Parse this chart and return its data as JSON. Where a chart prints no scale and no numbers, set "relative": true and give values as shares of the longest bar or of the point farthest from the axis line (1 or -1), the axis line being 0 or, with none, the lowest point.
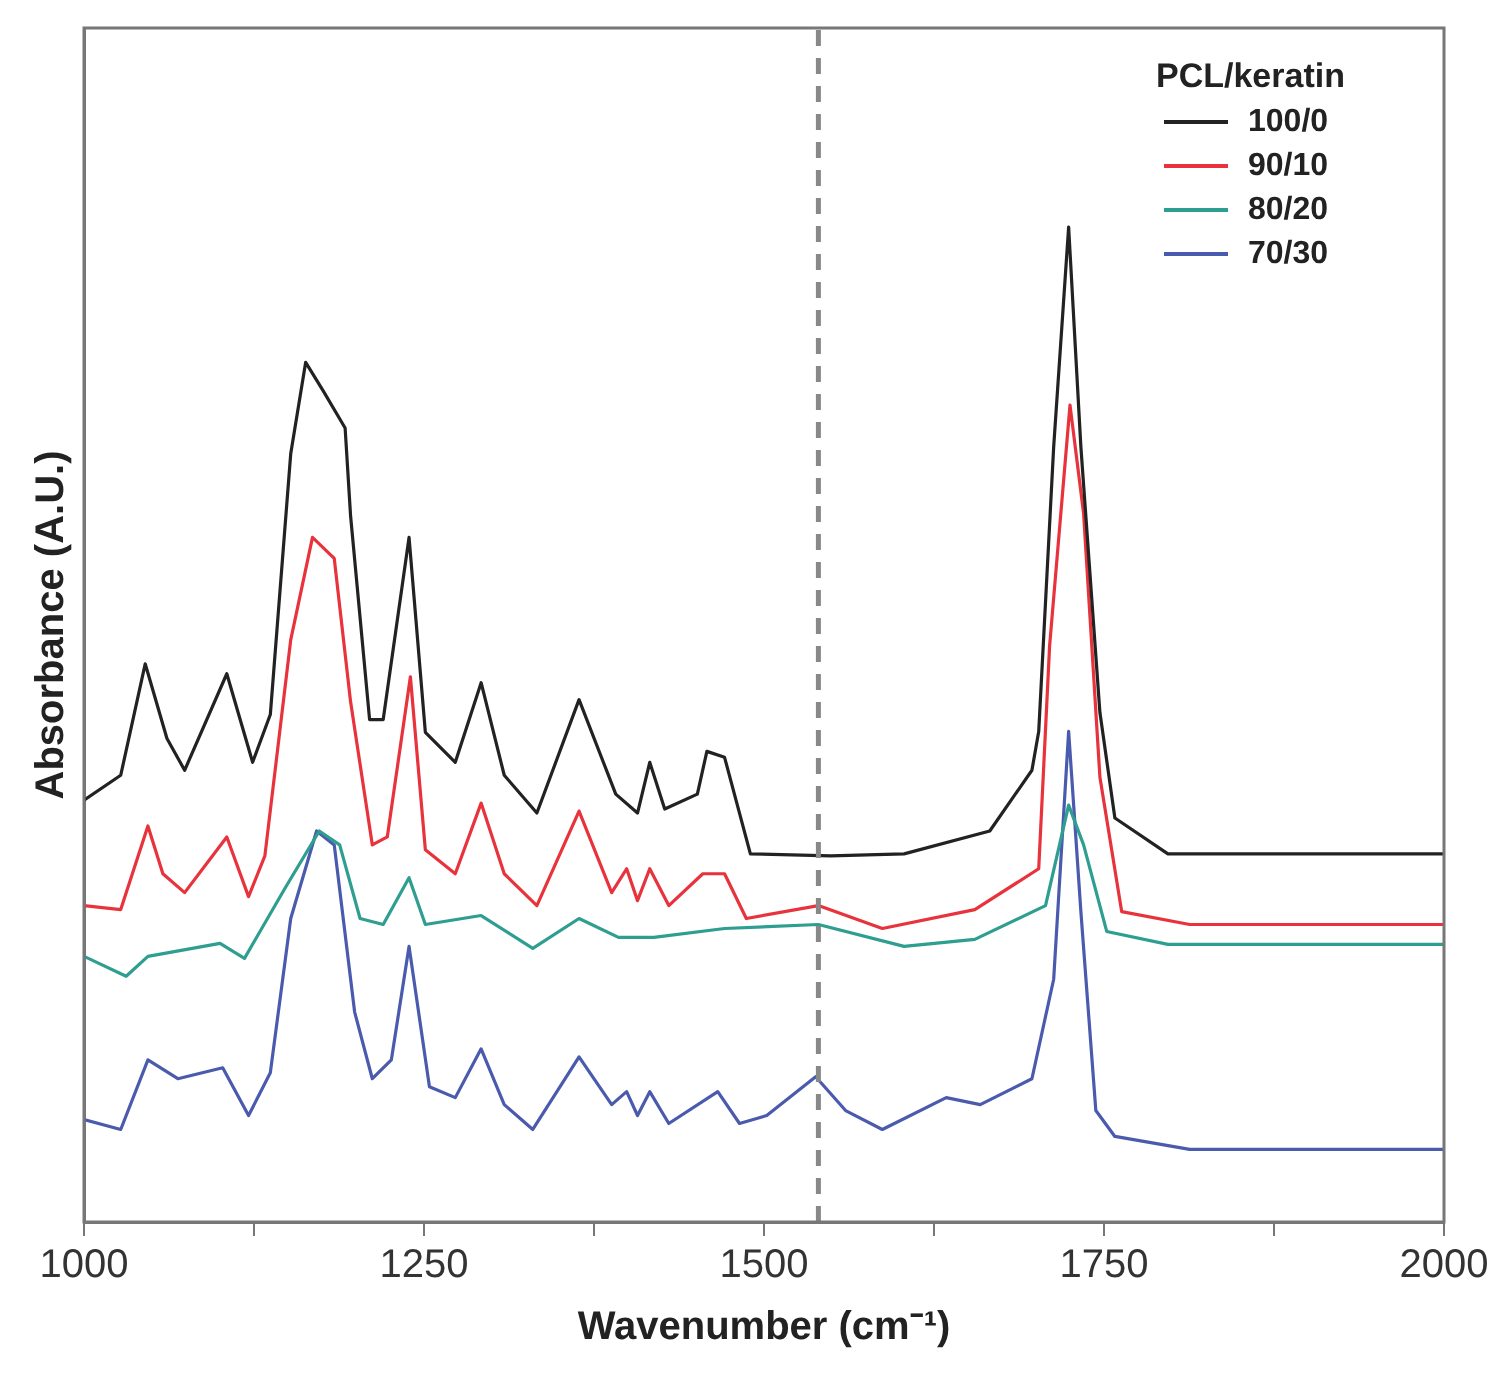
{
  "chart_data": {
    "type": "line",
    "xlabel": "Wavenumber (cm⁻¹)",
    "ylabel": "Absorbance (A.U.)",
    "legend_title": "PCL/keratin",
    "legend": "top right",
    "grid": false,
    "marker": "none",
    "line_style": "solid",
    "relative": true,
    "xlim": [
      1000,
      2000
    ],
    "xticks": [
      1000,
      {
        "value": 1125,
        "label": null
      },
      1250,
      {
        "value": 1375,
        "label": null
      },
      1500,
      {
        "value": 1625,
        "label": null
      },
      1750,
      {
        "value": 1875,
        "label": null
      },
      2000
    ],
    "ref_lines": [
      {
        "axis": "x",
        "value": 1540,
        "color": "#888888",
        "line_style": "dashed"
      }
    ],
    "series": [
      {
        "name": "100/0",
        "color": "#222222",
        "x": [
          1000,
          1027,
          1045,
          1061,
          1074,
          1105,
          1124,
          1137,
          1152,
          1163,
          1176,
          1192,
          1196,
          1210,
          1220,
          1239,
          1251,
          1273,
          1292,
          1309,
          1333,
          1364,
          1391,
          1407,
          1416,
          1427,
          1451,
          1458,
          1471,
          1490,
          1549,
          1603,
          1666,
          1697,
          1702,
          1713,
          1724,
          1733,
          1747,
          1758,
          1797,
          2000
        ],
        "values": [
          0.424,
          0.449,
          0.561,
          0.486,
          0.454,
          0.551,
          0.462,
          0.51,
          0.772,
          0.864,
          0.835,
          0.798,
          0.71,
          0.505,
          0.505,
          0.688,
          0.492,
          0.462,
          0.542,
          0.449,
          0.411,
          0.525,
          0.43,
          0.411,
          0.462,
          0.415,
          0.43,
          0.473,
          0.467,
          0.37,
          0.368,
          0.37,
          0.393,
          0.454,
          0.493,
          0.779,
          1,
          0.779,
          0.512,
          0.406,
          0.37,
          0.37
        ]
      },
      {
        "name": "90/10",
        "color": "#e8323c",
        "x": [
          1000,
          1027,
          1047,
          1058,
          1074,
          1105,
          1121,
          1133,
          1152,
          1168,
          1184,
          1196,
          1212,
          1223,
          1240,
          1251,
          1273,
          1292,
          1309,
          1333,
          1364,
          1388,
          1399,
          1407,
          1416,
          1430,
          1455,
          1471,
          1487,
          1540,
          1587,
          1655,
          1702,
          1710,
          1725,
          1735,
          1747,
          1763,
          1813,
          2000
        ],
        "values": [
          0.318,
          0.314,
          0.398,
          0.35,
          0.331,
          0.387,
          0.327,
          0.368,
          0.585,
          0.688,
          0.667,
          0.523,
          0.379,
          0.387,
          0.548,
          0.374,
          0.35,
          0.421,
          0.35,
          0.318,
          0.413,
          0.331,
          0.355,
          0.323,
          0.355,
          0.318,
          0.35,
          0.35,
          0.305,
          0.318,
          0.295,
          0.314,
          0.355,
          0.579,
          0.821,
          0.712,
          0.447,
          0.312,
          0.299,
          0.299
        ]
      },
      {
        "name": "80/20",
        "color": "#2e9e90",
        "x": [
          1000,
          1031,
          1047,
          1100,
          1118,
          1148,
          1173,
          1188,
          1203,
          1220,
          1239,
          1251,
          1292,
          1330,
          1364,
          1393,
          1419,
          1471,
          1540,
          1603,
          1655,
          1707,
          1724,
          1735,
          1752,
          1797,
          2000
        ],
        "values": [
          0.267,
          0.247,
          0.267,
          0.28,
          0.265,
          0.336,
          0.393,
          0.379,
          0.305,
          0.299,
          0.346,
          0.299,
          0.308,
          0.275,
          0.305,
          0.286,
          0.286,
          0.295,
          0.299,
          0.277,
          0.284,
          0.318,
          0.419,
          0.379,
          0.292,
          0.279,
          0.279
        ]
      },
      {
        "name": "70/30",
        "color": "#4a5aad",
        "x": [
          1000,
          1027,
          1047,
          1069,
          1102,
          1121,
          1137,
          1152,
          1171,
          1184,
          1199,
          1212,
          1226,
          1239,
          1254,
          1273,
          1292,
          1309,
          1330,
          1364,
          1388,
          1399,
          1407,
          1416,
          1430,
          1466,
          1482,
          1502,
          1538,
          1560,
          1587,
          1634,
          1659,
          1697,
          1713,
          1724,
          1733,
          1744,
          1758,
          1813,
          2000
        ],
        "values": [
          0.103,
          0.093,
          0.163,
          0.144,
          0.155,
          0.107,
          0.15,
          0.305,
          0.393,
          0.379,
          0.211,
          0.144,
          0.163,
          0.277,
          0.136,
          0.125,
          0.174,
          0.118,
          0.093,
          0.166,
          0.118,
          0.131,
          0.107,
          0.131,
          0.099,
          0.131,
          0.099,
          0.107,
          0.146,
          0.112,
          0.093,
          0.125,
          0.118,
          0.144,
          0.244,
          0.493,
          0.312,
          0.112,
          0.086,
          0.073,
          0.073
        ]
      }
    ]
  }
}
